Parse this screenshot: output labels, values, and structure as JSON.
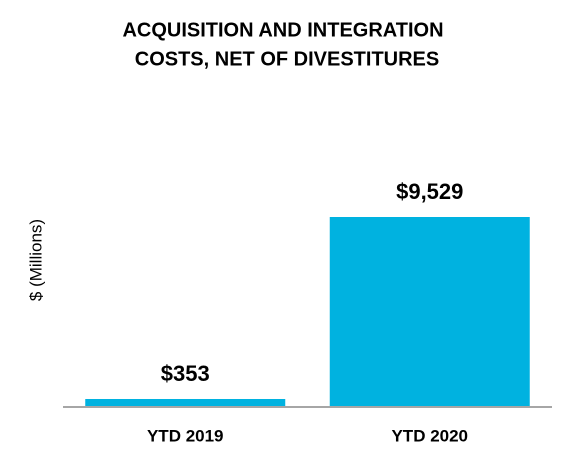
{
  "chart_data": {
    "type": "bar",
    "title": [
      "ACQUISITION AND INTEGRATION",
      "COSTS, NET OF DIVESTITURES"
    ],
    "y_label": "$ (Millions)",
    "categories": [
      "YTD 2019",
      "YTD 2020"
    ],
    "values": [
      353,
      9529
    ],
    "value_labels": [
      "$353",
      "$9,529"
    ],
    "color": "#00b2e0"
  }
}
